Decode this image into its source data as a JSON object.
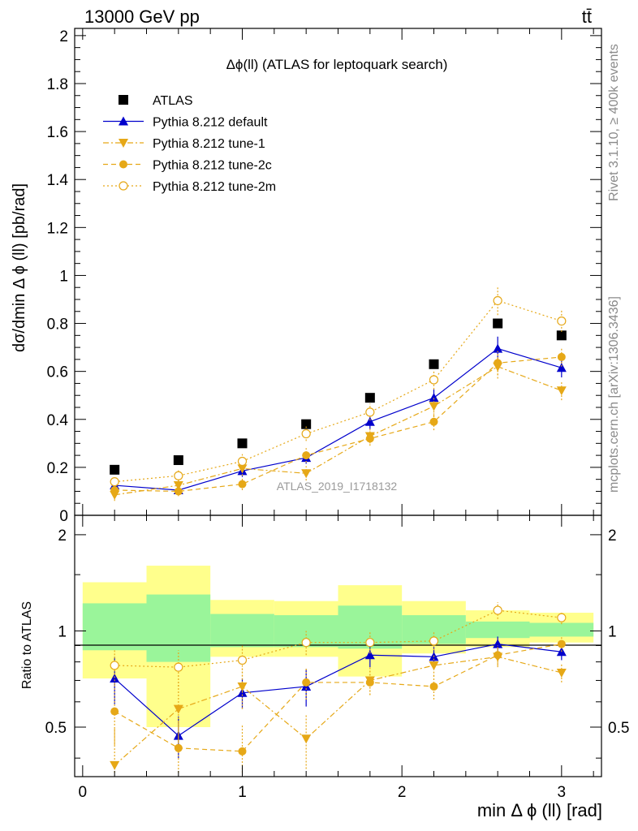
{
  "header": {
    "energy_label": "13000 GeV pp",
    "process_label": "tt̄"
  },
  "side_labels": {
    "rivet": "Rivet 3.1.10, ≥ 400k events",
    "mcplots": "mcplots.cern.ch [arXiv:1306.3436]"
  },
  "chart_data": {
    "type": "scatter",
    "title": "Δϕ(ll) (ATLAS for leptoquark search)",
    "watermark": "ATLAS_2019_I1718132",
    "xlabel": "min Δ ϕ (ll) [rad]",
    "ylabel": "dσ/dmin Δ ϕ (ll) [pb/rad]",
    "xlim": [
      -0.05,
      3.25
    ],
    "ylim": [
      0,
      2.03
    ],
    "x_ticks": [
      0,
      1,
      2,
      3
    ],
    "y_ticks": [
      0,
      0.2,
      0.4,
      0.6,
      0.8,
      1,
      1.2,
      1.4,
      1.6,
      1.8,
      2
    ],
    "y_tick_labels": [
      "0",
      "0.2",
      "0.4",
      "0.6",
      "0.8",
      "1",
      "1.2",
      "1.4",
      "1.6",
      "1.8",
      "2"
    ],
    "x": [
      0.2,
      0.6,
      1.0,
      1.4,
      1.8,
      2.2,
      2.6,
      3.0
    ],
    "series": [
      {
        "name": "ATLAS",
        "color": "#000000",
        "marker": "square",
        "line": "none",
        "values": [
          0.19,
          0.23,
          0.3,
          0.38,
          0.49,
          0.63,
          0.8,
          0.75
        ]
      },
      {
        "name": "Pythia 8.212 default",
        "color": "#0000cc",
        "marker": "triangle-up",
        "line": "solid",
        "values": [
          0.125,
          0.105,
          0.185,
          0.24,
          0.39,
          0.49,
          0.695,
          0.615
        ],
        "errors": [
          0.02,
          0.02,
          0.025,
          0.025,
          0.03,
          0.035,
          0.05,
          0.04
        ]
      },
      {
        "name": "Pythia 8.212 tune-1",
        "color": "#e6a817",
        "marker": "triangle-down",
        "line": "dashdot",
        "values": [
          0.085,
          0.125,
          0.195,
          0.175,
          0.33,
          0.455,
          0.62,
          0.52
        ],
        "errors": [
          0.025,
          0.025,
          0.03,
          0.03,
          0.03,
          0.04,
          0.05,
          0.04
        ]
      },
      {
        "name": "Pythia 8.212 tune-2c",
        "color": "#e6a817",
        "marker": "circle",
        "line": "dashed",
        "values": [
          0.105,
          0.1,
          0.13,
          0.25,
          0.32,
          0.39,
          0.635,
          0.66
        ],
        "errors": [
          0.025,
          0.02,
          0.025,
          0.03,
          0.03,
          0.035,
          0.05,
          0.04
        ]
      },
      {
        "name": "Pythia 8.212 tune-2m",
        "color": "#e6a817",
        "marker": "circle-open",
        "line": "dotted",
        "values": [
          0.14,
          0.165,
          0.225,
          0.34,
          0.43,
          0.565,
          0.895,
          0.81
        ],
        "errors": [
          0.02,
          0.025,
          0.03,
          0.03,
          0.035,
          0.04,
          0.06,
          0.045
        ]
      }
    ],
    "ratio": {
      "ylabel": "Ratio to ATLAS",
      "ylim": [
        0.35,
        2.3
      ],
      "y_tick_labels": [
        "0.5",
        "1",
        "2"
      ],
      "y_ticks": [
        0.5,
        1,
        2
      ],
      "band_edges": [
        0,
        0.4,
        0.8,
        1.2,
        1.6,
        2.0,
        2.4,
        2.8,
        3.2
      ],
      "band_inner": [
        [
          0.87,
          1.22
        ],
        [
          0.8,
          1.3
        ],
        [
          0.89,
          1.13
        ],
        [
          0.89,
          1.12
        ],
        [
          0.88,
          1.2
        ],
        [
          0.91,
          1.12
        ],
        [
          0.95,
          1.07
        ],
        [
          0.96,
          1.06
        ]
      ],
      "band_outer": [
        [
          0.71,
          1.42
        ],
        [
          0.5,
          1.6
        ],
        [
          0.83,
          1.25
        ],
        [
          0.83,
          1.24
        ],
        [
          0.72,
          1.39
        ],
        [
          0.85,
          1.24
        ],
        [
          0.89,
          1.16
        ],
        [
          0.92,
          1.14
        ]
      ],
      "series": [
        {
          "name": "Pythia 8.212 default",
          "values": [
            0.71,
            0.47,
            0.64,
            0.67,
            0.84,
            0.83,
            0.91,
            0.86
          ],
          "errors": [
            0.12,
            0.07,
            0.07,
            0.09,
            0.07,
            0.06,
            0.05,
            0.05
          ]
        },
        {
          "name": "Pythia 8.212 tune-1",
          "values": [
            0.38,
            0.57,
            0.67,
            0.46,
            0.7,
            0.78,
            0.83,
            0.74
          ],
          "errors": [
            0.12,
            0.12,
            0.1,
            0.09,
            0.07,
            0.06,
            0.06,
            0.05
          ]
        },
        {
          "name": "Pythia 8.212 tune-2c",
          "values": [
            0.56,
            0.43,
            0.42,
            0.69,
            0.69,
            0.67,
            0.84,
            0.91
          ],
          "errors": [
            0.12,
            0.09,
            0.09,
            0.08,
            0.06,
            0.06,
            0.06,
            0.05
          ]
        },
        {
          "name": "Pythia 8.212 tune-2m",
          "values": [
            0.78,
            0.77,
            0.81,
            0.92,
            0.92,
            0.93,
            1.16,
            1.1
          ],
          "errors": [
            0.1,
            0.1,
            0.09,
            0.08,
            0.07,
            0.06,
            0.07,
            0.05
          ]
        }
      ]
    }
  }
}
